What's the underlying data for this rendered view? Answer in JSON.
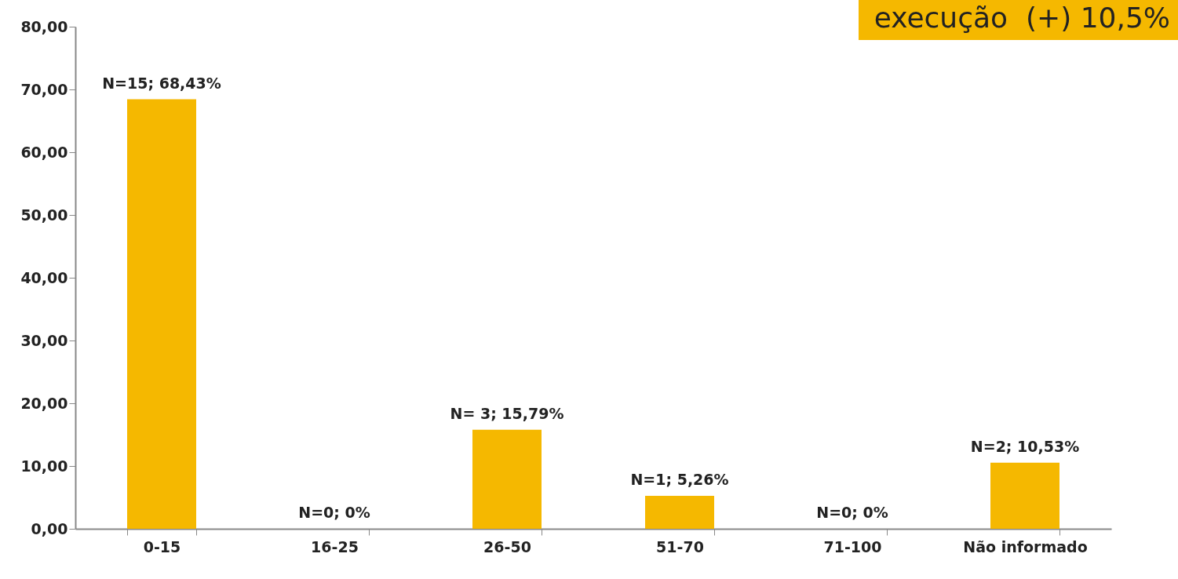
{
  "chart_data": {
    "type": "bar",
    "categories": [
      "0-15",
      "16-25",
      "26-50",
      "51-70",
      "71-100",
      "Não informado"
    ],
    "values": [
      68.43,
      0,
      15.79,
      5.26,
      0,
      10.53
    ],
    "value_labels": [
      "N=15; 68,43%",
      "N=0; 0%",
      "N= 3; 15,79%",
      "N=1; 5,26%",
      "N=0; 0%",
      "N=2; 10,53%"
    ],
    "color": "#f5b800",
    "ylim": [
      0,
      80
    ],
    "yticks": [
      {
        "value": 0,
        "label": "0,00"
      },
      {
        "value": 10,
        "label": "10,00"
      },
      {
        "value": 20,
        "label": "20,00"
      },
      {
        "value": 30,
        "label": "30,00"
      },
      {
        "value": 40,
        "label": "40,00"
      },
      {
        "value": 50,
        "label": "50,00"
      },
      {
        "value": 60,
        "label": "60,00"
      },
      {
        "value": 70,
        "label": "70,00"
      },
      {
        "value": 80,
        "label": "80,00"
      }
    ],
    "grid": false,
    "annotations": [
      "execução  (+) 10,5%"
    ]
  }
}
